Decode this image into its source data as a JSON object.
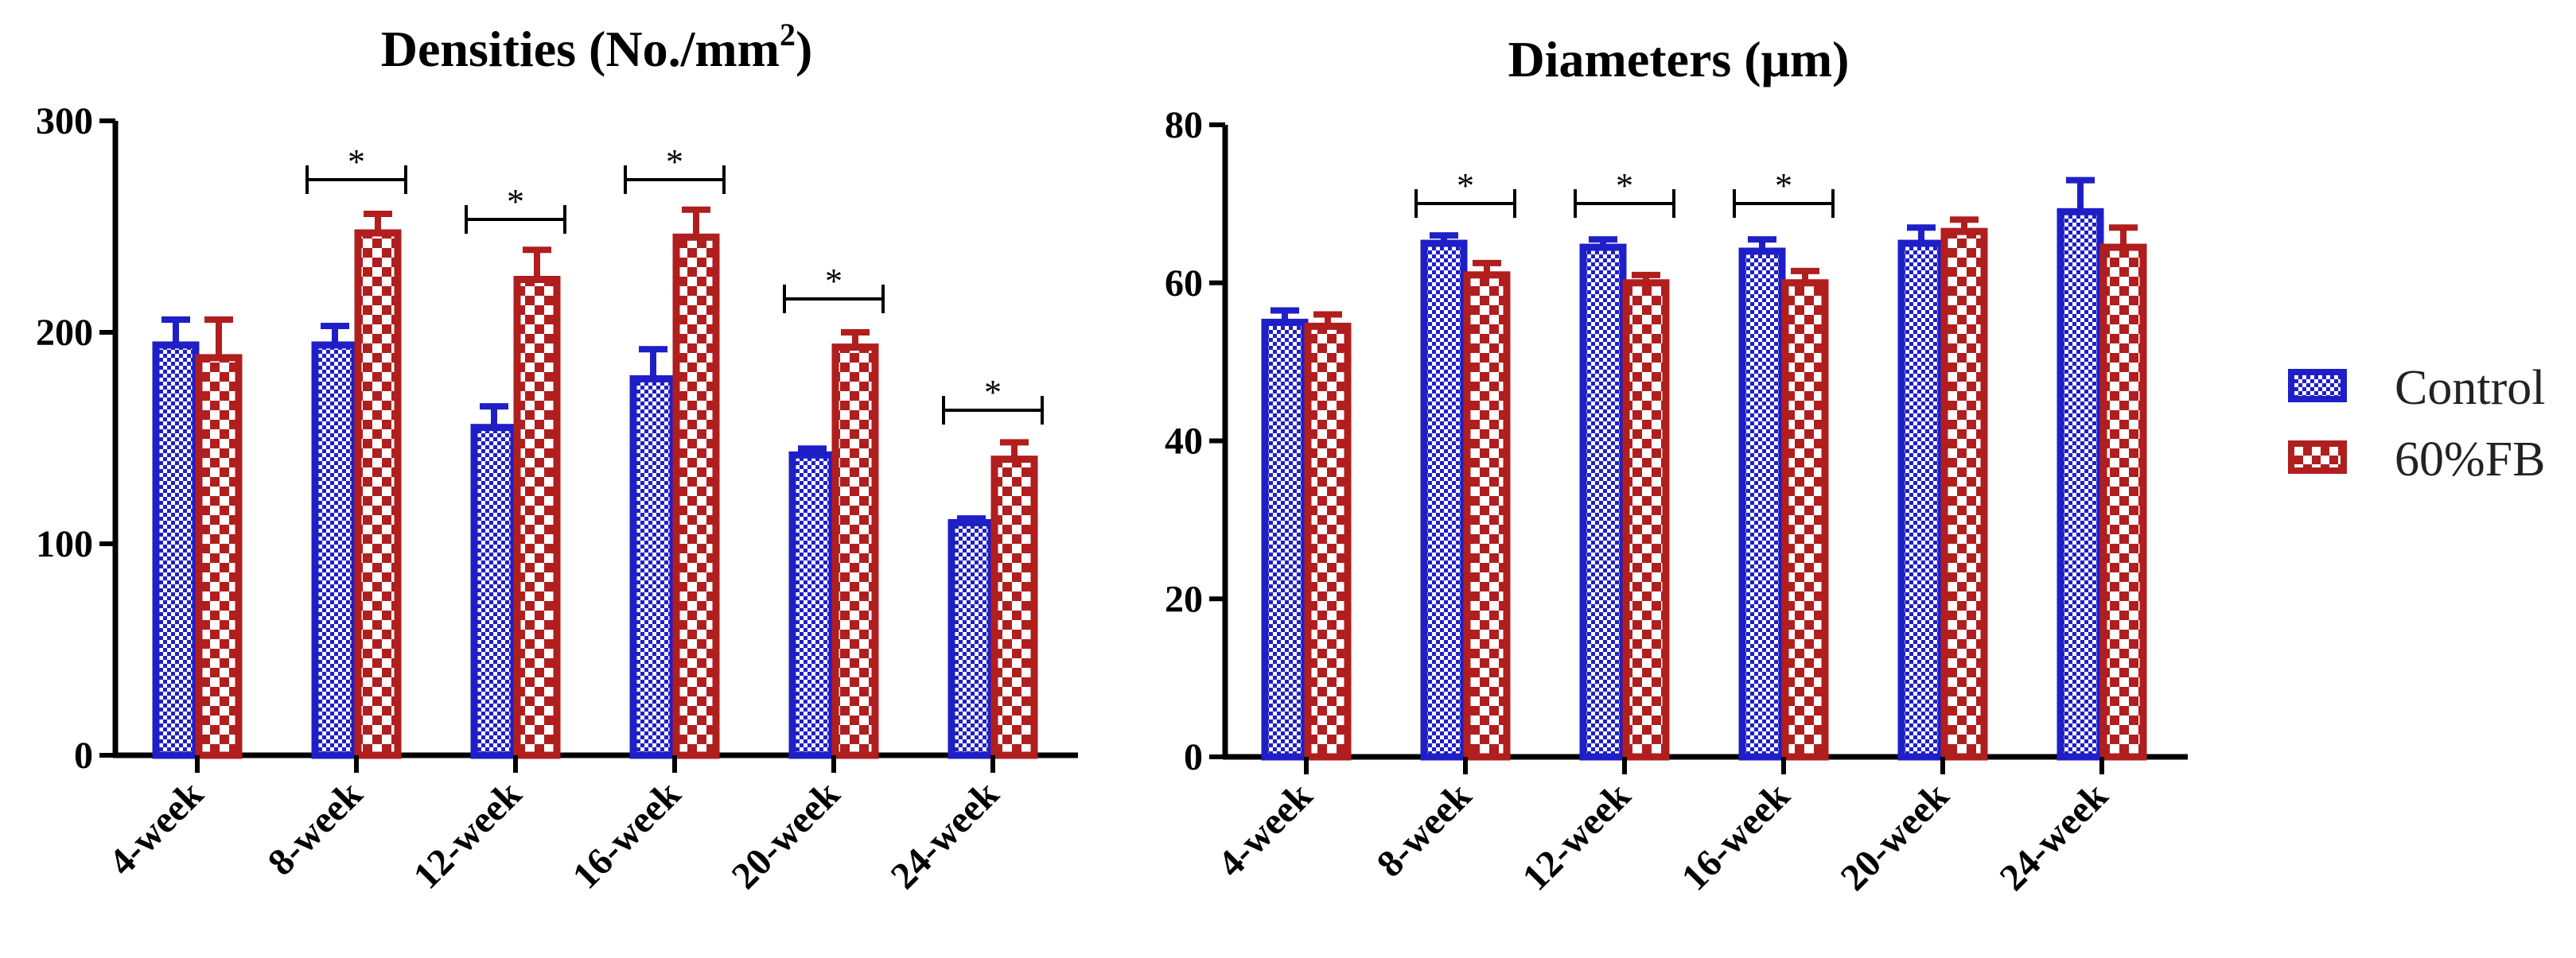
{
  "chart_data": [
    {
      "type": "bar",
      "title": "Densities (No./mm",
      "title_superscript": "2",
      "title_suffix": ")",
      "categories": [
        "4-week",
        "8-week",
        "12-week",
        "16-week",
        "20-week",
        "24-week"
      ],
      "series": [
        {
          "name": "Control",
          "values": [
            194,
            194,
            155,
            178,
            142,
            110
          ],
          "errors": [
            12,
            9,
            10,
            14,
            3,
            2
          ]
        },
        {
          "name": "60%FB",
          "values": [
            188,
            247,
            225,
            245,
            193,
            140
          ],
          "errors": [
            18,
            9,
            14,
            13,
            7,
            8
          ]
        }
      ],
      "ylim": [
        0,
        300
      ],
      "yticks": [
        0,
        100,
        200,
        300
      ],
      "significance": [
        {
          "category_index": 1,
          "label": "*"
        },
        {
          "category_index": 2,
          "label": "*"
        },
        {
          "category_index": 3,
          "label": "*"
        },
        {
          "category_index": 4,
          "label": "*"
        },
        {
          "category_index": 5,
          "label": "*"
        }
      ]
    },
    {
      "type": "bar",
      "title": "Diameters (μm)",
      "categories": [
        "4-week",
        "8-week",
        "12-week",
        "16-week",
        "20-week",
        "24-week"
      ],
      "series": [
        {
          "name": "Control",
          "values": [
            55,
            65,
            64.5,
            64,
            65,
            69
          ],
          "errors": [
            1.5,
            1,
            1,
            1.5,
            2,
            4
          ]
        },
        {
          "name": "60%FB",
          "values": [
            54.5,
            61,
            60,
            60,
            66.5,
            64.5
          ],
          "errors": [
            1.5,
            1.5,
            1,
            1.5,
            1.5,
            2.5
          ]
        }
      ],
      "ylim": [
        0,
        80
      ],
      "yticks": [
        0,
        20,
        40,
        60,
        80
      ],
      "significance": [
        {
          "category_index": 1,
          "label": "*"
        },
        {
          "category_index": 2,
          "label": "*"
        },
        {
          "category_index": 3,
          "label": "*"
        }
      ]
    }
  ],
  "legend": {
    "items": [
      {
        "label": "Control",
        "color": "#1f1fc8"
      },
      {
        "label": "60%FB",
        "color": "#b01e1e"
      }
    ]
  },
  "colors": {
    "control": "#1f1fc8",
    "fb": "#b01e1e",
    "axis": "#000000"
  }
}
